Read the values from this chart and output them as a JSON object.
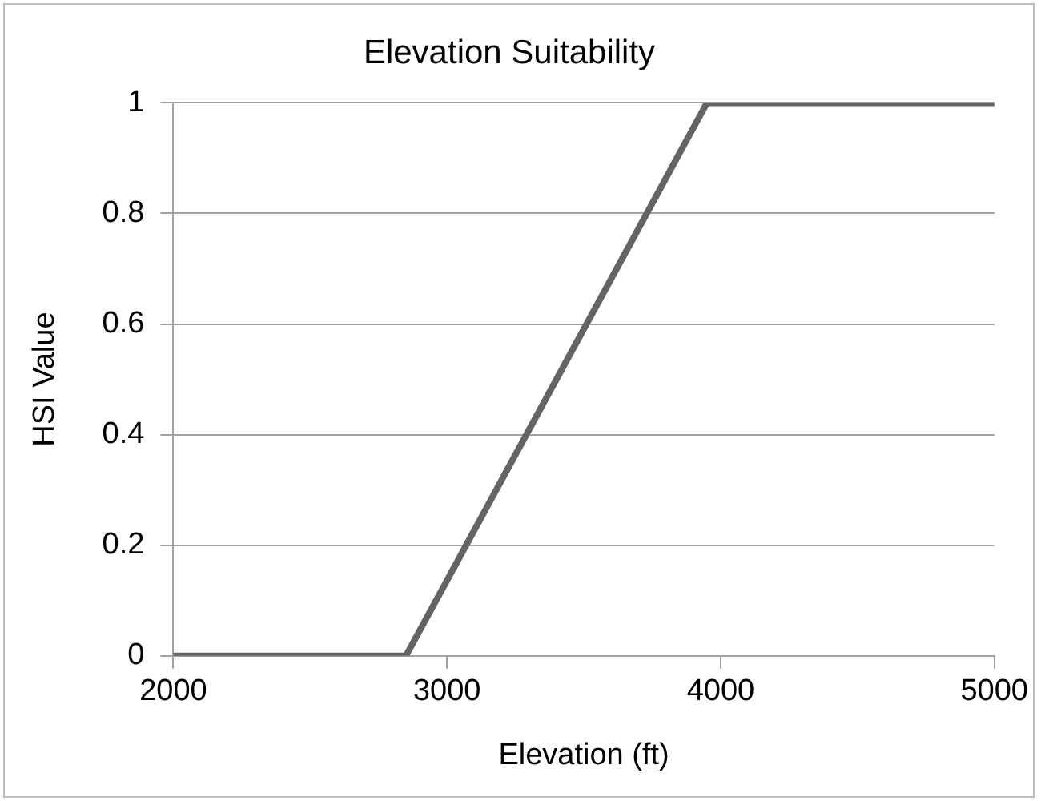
{
  "chart_data": {
    "type": "line",
    "title": "Elevation Suitability",
    "xlabel": "Elevation (ft)",
    "ylabel": "HSI Value",
    "x": [
      2000,
      2850,
      3950,
      5000
    ],
    "series": [
      {
        "color": "#646464",
        "values": [
          0,
          0,
          1,
          1
        ]
      }
    ],
    "xlim": [
      2000,
      5000
    ],
    "xticks": [
      2000,
      3000,
      4000,
      5000
    ],
    "ylim": [
      0,
      1
    ],
    "yticks": [
      0,
      0.2,
      0.4,
      0.6,
      0.8,
      1
    ],
    "grid": "y",
    "legend": false,
    "marker": "none",
    "line_style": "solid"
  }
}
